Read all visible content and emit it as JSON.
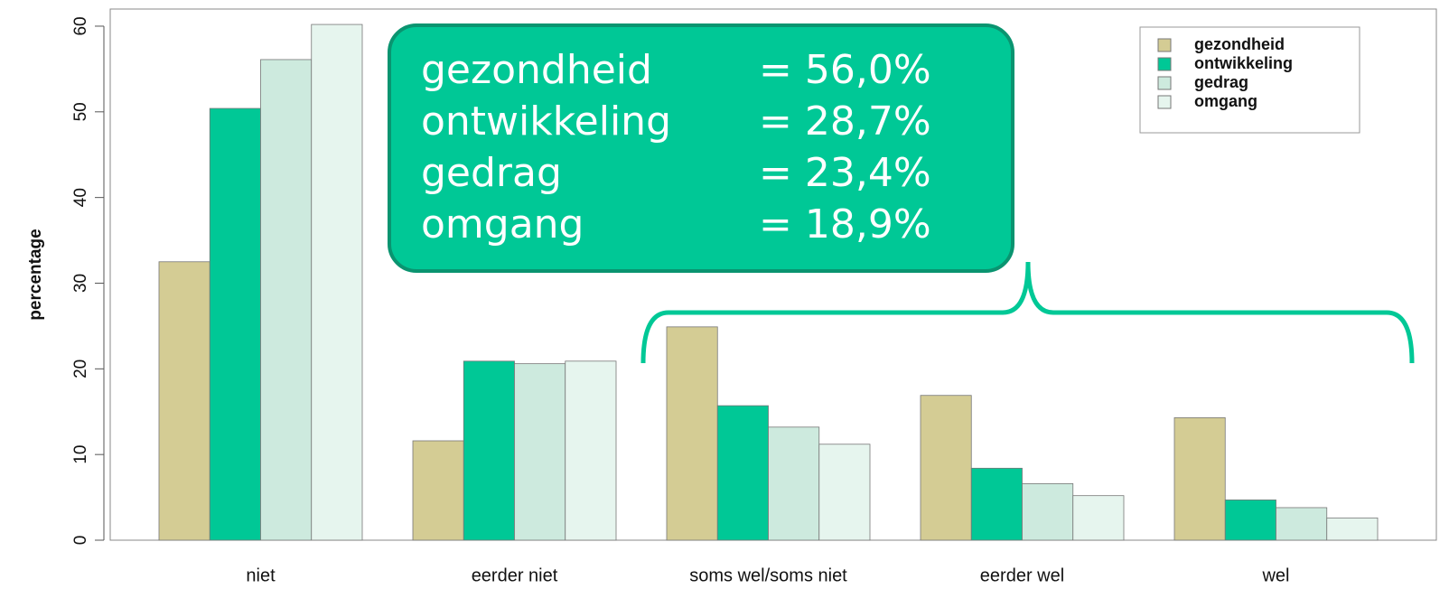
{
  "chart_data": {
    "type": "bar",
    "y_label": "percentage",
    "categories": [
      "niet",
      "eerder niet",
      "soms wel/soms niet",
      "eerder wel",
      "wel"
    ],
    "series": [
      {
        "name": "gezondheid",
        "color": "#d4cc94",
        "values": [
          32.5,
          11.6,
          24.9,
          16.9,
          14.3
        ]
      },
      {
        "name": "ontwikkeling",
        "color": "#00c896",
        "values": [
          50.4,
          20.9,
          15.7,
          8.4,
          4.7
        ]
      },
      {
        "name": "gedrag",
        "color": "#cdeade",
        "values": [
          56.1,
          20.6,
          13.2,
          6.6,
          3.8
        ]
      },
      {
        "name": "omgang",
        "color": "#e6f5ee",
        "values": [
          60.2,
          20.9,
          11.2,
          5.2,
          2.6
        ]
      }
    ],
    "ylim": [
      0,
      62
    ],
    "yticks": [
      0,
      10,
      20,
      30,
      40,
      50,
      60
    ],
    "legend": "top-right",
    "annotation": [
      {
        "label": "gezondheid",
        "value": "= 56,0%"
      },
      {
        "label": "ontwikkeling",
        "value": "= 28,7%"
      },
      {
        "label": "gedrag",
        "value": "= 23,4%"
      },
      {
        "label": "omgang",
        "value": "= 18,9%"
      }
    ]
  }
}
